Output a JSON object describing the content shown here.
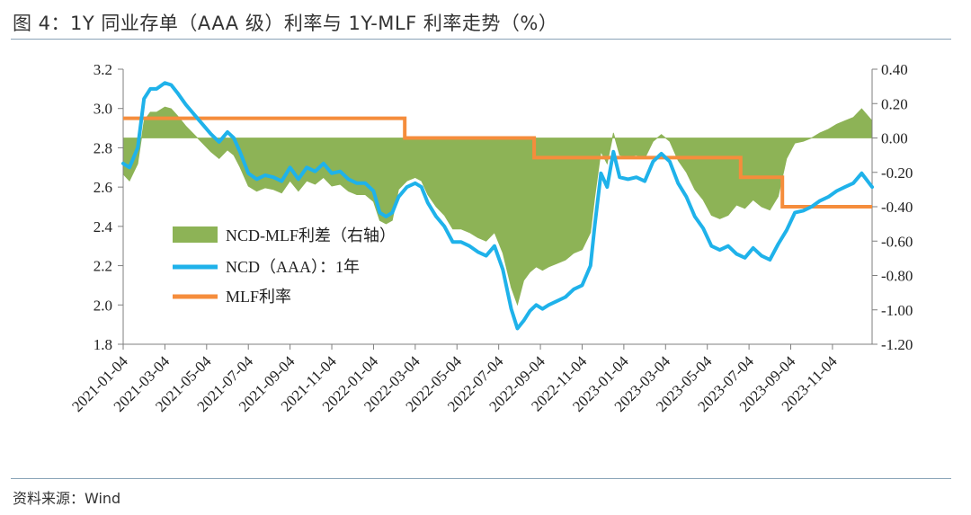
{
  "figure": {
    "title": "图 4：1Y 同业存单（AAA 级）利率与 1Y-MLF 利率走势（%）",
    "source": "资料来源：Wind"
  },
  "colors": {
    "ncd": "#1fb2ea",
    "mlf": "#f58d3c",
    "spread": "#8db356",
    "axis": "#7f7f7f"
  },
  "chart_data": {
    "type": "line",
    "title": "1Y 同业存单（AAA 级）利率与 1Y-MLF 利率走势（%）",
    "x_tick_labels": [
      "2021-01-04",
      "2021-03-04",
      "2021-05-04",
      "2021-07-04",
      "2021-09-04",
      "2021-11-04",
      "2022-01-04",
      "2022-03-04",
      "2022-05-04",
      "2022-07-04",
      "2022-09-04",
      "2022-11-04",
      "2023-01-04",
      "2023-03-04",
      "2023-05-04",
      "2023-07-04",
      "2023-09-04",
      "2023-11-04"
    ],
    "x_tick_months": [
      0,
      2,
      4,
      6,
      8,
      10,
      12,
      14,
      16,
      18,
      20,
      22,
      24,
      26,
      28,
      30,
      32,
      34
    ],
    "x_range_months": [
      0,
      35.9
    ],
    "y_left": {
      "min": 1.8,
      "max": 3.2,
      "ticks": [
        "3.2",
        "3.0",
        "2.8",
        "2.6",
        "2.4",
        "2.2",
        "2.0",
        "1.8"
      ],
      "tick_values": [
        3.2,
        3.0,
        2.8,
        2.6,
        2.4,
        2.2,
        2.0,
        1.8
      ]
    },
    "y_right": {
      "min": -1.2,
      "max": 0.4,
      "ticks": [
        "0.40",
        "0.20",
        "0.00",
        "-0.20",
        "-0.40",
        "-0.60",
        "-0.80",
        "-1.00",
        "-1.20"
      ],
      "tick_values": [
        0.4,
        0.2,
        0.0,
        -0.2,
        -0.4,
        -0.6,
        -0.8,
        -1.0,
        -1.2
      ]
    },
    "legend": [
      {
        "label": "NCD-MLF利差（右轴）",
        "kind": "area"
      },
      {
        "label": "NCD（AAA）：1年",
        "kind": "line"
      },
      {
        "label": "MLF利率",
        "kind": "line"
      }
    ],
    "series": [
      {
        "name": "NCD（AAA）：1年",
        "axis": "left",
        "x_months": [
          0,
          0.3,
          0.7,
          1.0,
          1.3,
          1.6,
          2.0,
          2.3,
          2.6,
          3.0,
          3.4,
          3.8,
          4.2,
          4.6,
          5.0,
          5.3,
          5.6,
          6.0,
          6.4,
          6.8,
          7.2,
          7.6,
          8.0,
          8.4,
          8.8,
          9.2,
          9.6,
          10.0,
          10.4,
          10.8,
          11.2,
          11.6,
          12.0,
          12.3,
          12.6,
          12.9,
          13.2,
          13.6,
          14.0,
          14.3,
          14.6,
          15.0,
          15.4,
          15.8,
          16.2,
          16.6,
          17.0,
          17.4,
          17.8,
          18.2,
          18.6,
          18.9,
          19.2,
          19.5,
          19.8,
          20.1,
          20.4,
          20.8,
          21.2,
          21.6,
          22.0,
          22.4,
          22.6,
          22.9,
          23.2,
          23.5,
          23.8,
          24.2,
          24.6,
          25.0,
          25.4,
          25.8,
          26.2,
          26.6,
          27.0,
          27.4,
          27.8,
          28.2,
          28.6,
          29.0,
          29.4,
          29.8,
          30.2,
          30.6,
          31.0,
          31.4,
          31.8,
          32.2,
          32.6,
          33.0,
          33.4,
          33.8,
          34.2,
          34.6,
          35.0,
          35.4,
          35.9
        ],
        "values": [
          2.72,
          2.7,
          2.8,
          3.05,
          3.1,
          3.1,
          3.13,
          3.12,
          3.08,
          3.02,
          2.97,
          2.92,
          2.87,
          2.83,
          2.88,
          2.85,
          2.78,
          2.67,
          2.64,
          2.66,
          2.65,
          2.63,
          2.7,
          2.64,
          2.7,
          2.68,
          2.72,
          2.67,
          2.68,
          2.64,
          2.62,
          2.62,
          2.58,
          2.47,
          2.45,
          2.47,
          2.55,
          2.6,
          2.62,
          2.6,
          2.52,
          2.45,
          2.4,
          2.32,
          2.32,
          2.3,
          2.27,
          2.25,
          2.3,
          2.18,
          1.98,
          1.88,
          1.92,
          1.97,
          2.0,
          1.98,
          2.0,
          2.02,
          2.04,
          2.08,
          2.1,
          2.2,
          2.4,
          2.67,
          2.6,
          2.78,
          2.65,
          2.64,
          2.65,
          2.63,
          2.73,
          2.77,
          2.73,
          2.62,
          2.55,
          2.45,
          2.39,
          2.3,
          2.28,
          2.3,
          2.26,
          2.24,
          2.29,
          2.25,
          2.23,
          2.31,
          2.38,
          2.47,
          2.48,
          2.5,
          2.53,
          2.55,
          2.58,
          2.6,
          2.62,
          2.67,
          2.6
        ]
      },
      {
        "name": "MLF利率",
        "axis": "left",
        "x_months": [
          0,
          13.5,
          13.5,
          19.7,
          19.7,
          29.6,
          29.6,
          31.6,
          31.6,
          35.9
        ],
        "values": [
          2.95,
          2.95,
          2.85,
          2.85,
          2.75,
          2.75,
          2.65,
          2.65,
          2.5,
          2.5
        ]
      },
      {
        "name": "NCD-MLF利差（右轴）",
        "axis": "right",
        "x_months": [
          0,
          0.3,
          0.7,
          1.0,
          1.3,
          1.6,
          2.0,
          2.3,
          2.6,
          3.0,
          3.4,
          3.8,
          4.2,
          4.6,
          5.0,
          5.3,
          5.6,
          6.0,
          6.4,
          6.8,
          7.2,
          7.6,
          8.0,
          8.4,
          8.8,
          9.2,
          9.6,
          10.0,
          10.4,
          10.8,
          11.2,
          11.6,
          12.0,
          12.3,
          12.6,
          12.9,
          13.2,
          13.6,
          14.0,
          14.3,
          14.6,
          15.0,
          15.4,
          15.8,
          16.2,
          16.6,
          17.0,
          17.4,
          17.8,
          18.2,
          18.6,
          18.9,
          19.2,
          19.5,
          19.8,
          20.1,
          20.4,
          20.8,
          21.2,
          21.6,
          22.0,
          22.4,
          22.6,
          22.9,
          23.2,
          23.5,
          23.8,
          24.2,
          24.6,
          25.0,
          25.4,
          25.8,
          26.2,
          26.6,
          27.0,
          27.4,
          27.8,
          28.2,
          28.6,
          29.0,
          29.4,
          29.8,
          30.2,
          30.6,
          31.0,
          31.4,
          31.8,
          32.2,
          32.6,
          33.0,
          33.4,
          33.8,
          34.2,
          34.6,
          35.0,
          35.4,
          35.9
        ],
        "values": [
          -0.21,
          -0.25,
          -0.15,
          0.1,
          0.15,
          0.15,
          0.18,
          0.17,
          0.13,
          0.07,
          0.02,
          -0.03,
          -0.08,
          -0.12,
          -0.07,
          -0.1,
          -0.17,
          -0.28,
          -0.31,
          -0.29,
          -0.3,
          -0.32,
          -0.25,
          -0.31,
          -0.25,
          -0.27,
          -0.23,
          -0.28,
          -0.27,
          -0.31,
          -0.33,
          -0.33,
          -0.37,
          -0.48,
          -0.5,
          -0.48,
          -0.3,
          -0.25,
          -0.23,
          -0.25,
          -0.33,
          -0.4,
          -0.45,
          -0.53,
          -0.53,
          -0.55,
          -0.58,
          -0.6,
          -0.55,
          -0.67,
          -0.87,
          -0.97,
          -0.83,
          -0.78,
          -0.75,
          -0.77,
          -0.75,
          -0.73,
          -0.71,
          -0.67,
          -0.65,
          -0.55,
          -0.35,
          -0.08,
          -0.15,
          0.03,
          -0.1,
          -0.11,
          -0.1,
          -0.12,
          -0.02,
          0.02,
          -0.02,
          -0.13,
          -0.2,
          -0.3,
          -0.36,
          -0.45,
          -0.47,
          -0.45,
          -0.39,
          -0.41,
          -0.36,
          -0.4,
          -0.42,
          -0.34,
          -0.12,
          -0.03,
          -0.02,
          0.0,
          0.03,
          0.05,
          0.08,
          0.1,
          0.12,
          0.17,
          0.1
        ]
      }
    ]
  }
}
